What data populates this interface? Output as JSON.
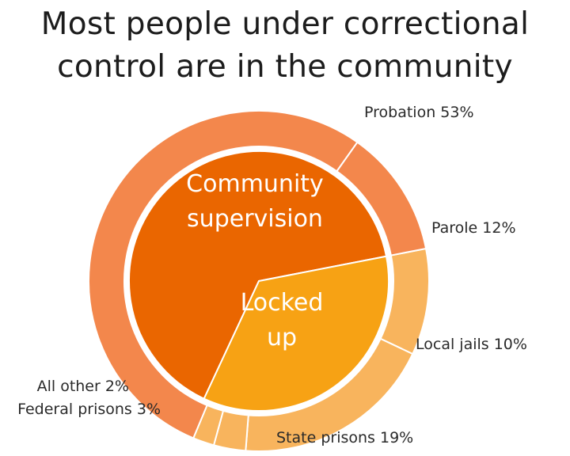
{
  "title_line1": "Most people under correctional",
  "title_line2": "control are in the community",
  "chart_data": {
    "type": "pie",
    "title": "Most people under correctional control are in the community",
    "inner": [
      {
        "label_lines": [
          "Community",
          "supervision"
        ],
        "value": 65,
        "color": "#ea6600"
      },
      {
        "label_lines": [
          "Locked",
          "up"
        ],
        "value": 35,
        "color": "#f7a214"
      }
    ],
    "outer": [
      {
        "label": "Probation 53%",
        "value": 53,
        "color": "#f3874c"
      },
      {
        "label": "Parole 12%",
        "value": 12,
        "color": "#f3874c"
      },
      {
        "label": "Local jails 10%",
        "value": 10,
        "color": "#f8b45d"
      },
      {
        "label": "State prisons 19%",
        "value": 19,
        "color": "#f8b45d"
      },
      {
        "label": "Federal prisons 3%",
        "value": 3,
        "color": "#f8b45d"
      },
      {
        "label": "All other 2%",
        "value": 2,
        "color": "#f8b45d"
      }
    ]
  }
}
